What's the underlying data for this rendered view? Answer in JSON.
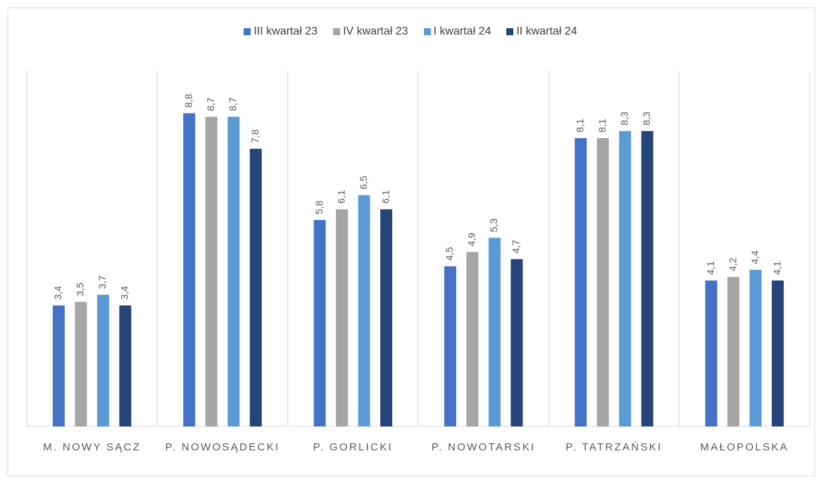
{
  "chart_data": {
    "type": "bar",
    "categories": [
      "M. NOWY SĄCZ",
      "P. NOWOSĄDECKI",
      "P. GORLICKI",
      "P. NOWOTARSKI",
      "P. TATRZAŃSKI",
      "MAŁOPOLSKA"
    ],
    "series": [
      {
        "name": "III kwartał 23",
        "color": "#4472c4",
        "values": [
          3.4,
          8.8,
          5.8,
          4.5,
          8.1,
          4.1
        ],
        "value_labels": [
          "3,4",
          "8,8",
          "5,8",
          "4,5",
          "8,1",
          "4,1"
        ]
      },
      {
        "name": "IV kwartał 23",
        "color": "#a5a5a5",
        "values": [
          3.5,
          8.7,
          6.1,
          4.9,
          8.1,
          4.2
        ],
        "value_labels": [
          "3,5",
          "8,7",
          "6,1",
          "4,9",
          "8,1",
          "4,2"
        ]
      },
      {
        "name": "I kwartał 24",
        "color": "#5b9bd5",
        "values": [
          3.7,
          8.7,
          6.5,
          5.3,
          8.3,
          4.4
        ],
        "value_labels": [
          "3,7",
          "8,7",
          "6,5",
          "5,3",
          "8,3",
          "4,4"
        ]
      },
      {
        "name": "II kwartał 24",
        "color": "#264478",
        "values": [
          3.4,
          7.8,
          6.1,
          4.7,
          8.3,
          4.1
        ],
        "value_labels": [
          "3,4",
          "7,8",
          "6,1",
          "4,7",
          "8,3",
          "4,1"
        ]
      }
    ],
    "ylim": [
      0,
      10
    ],
    "legend": "top"
  }
}
